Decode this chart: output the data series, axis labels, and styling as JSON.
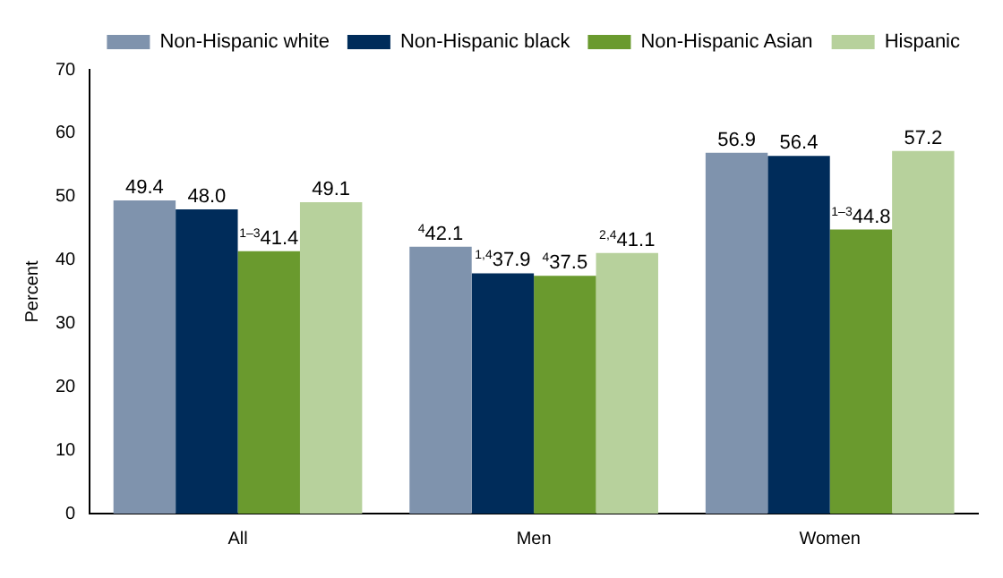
{
  "chart_data": {
    "type": "bar",
    "ylabel": "Percent",
    "categories": [
      "All",
      "Men",
      "Women"
    ],
    "series": [
      {
        "name": "Non-Hispanic white",
        "color": "#7f93ad",
        "values": [
          49.4,
          42.1,
          56.9
        ],
        "value_labels": [
          "49.4",
          "$^{4}$42.1",
          "56.9"
        ]
      },
      {
        "name": "Non-Hispanic black",
        "color": "#002c5a",
        "values": [
          48.0,
          37.9,
          56.4
        ],
        "value_labels": [
          "48.0",
          "$^{1,4}$37.9",
          "56.4"
        ]
      },
      {
        "name": "Non-Hispanic Asian",
        "color": "#6a9a2e",
        "values": [
          41.4,
          37.5,
          44.8
        ],
        "value_labels": [
          "$^{1–3}$41.4",
          "$^{4}$37.5",
          "$^{1–3}$44.8"
        ]
      },
      {
        "name": "Hispanic",
        "color": "#b7d19c",
        "values": [
          49.1,
          41.1,
          57.2
        ],
        "value_labels": [
          "49.1",
          "$^{2,4}$41.1",
          "57.2"
        ]
      }
    ],
    "ylim": [
      0,
      70
    ],
    "yticks": [
      0,
      10,
      20,
      30,
      40,
      50,
      60,
      70
    ],
    "grid": false,
    "legend": "top"
  }
}
